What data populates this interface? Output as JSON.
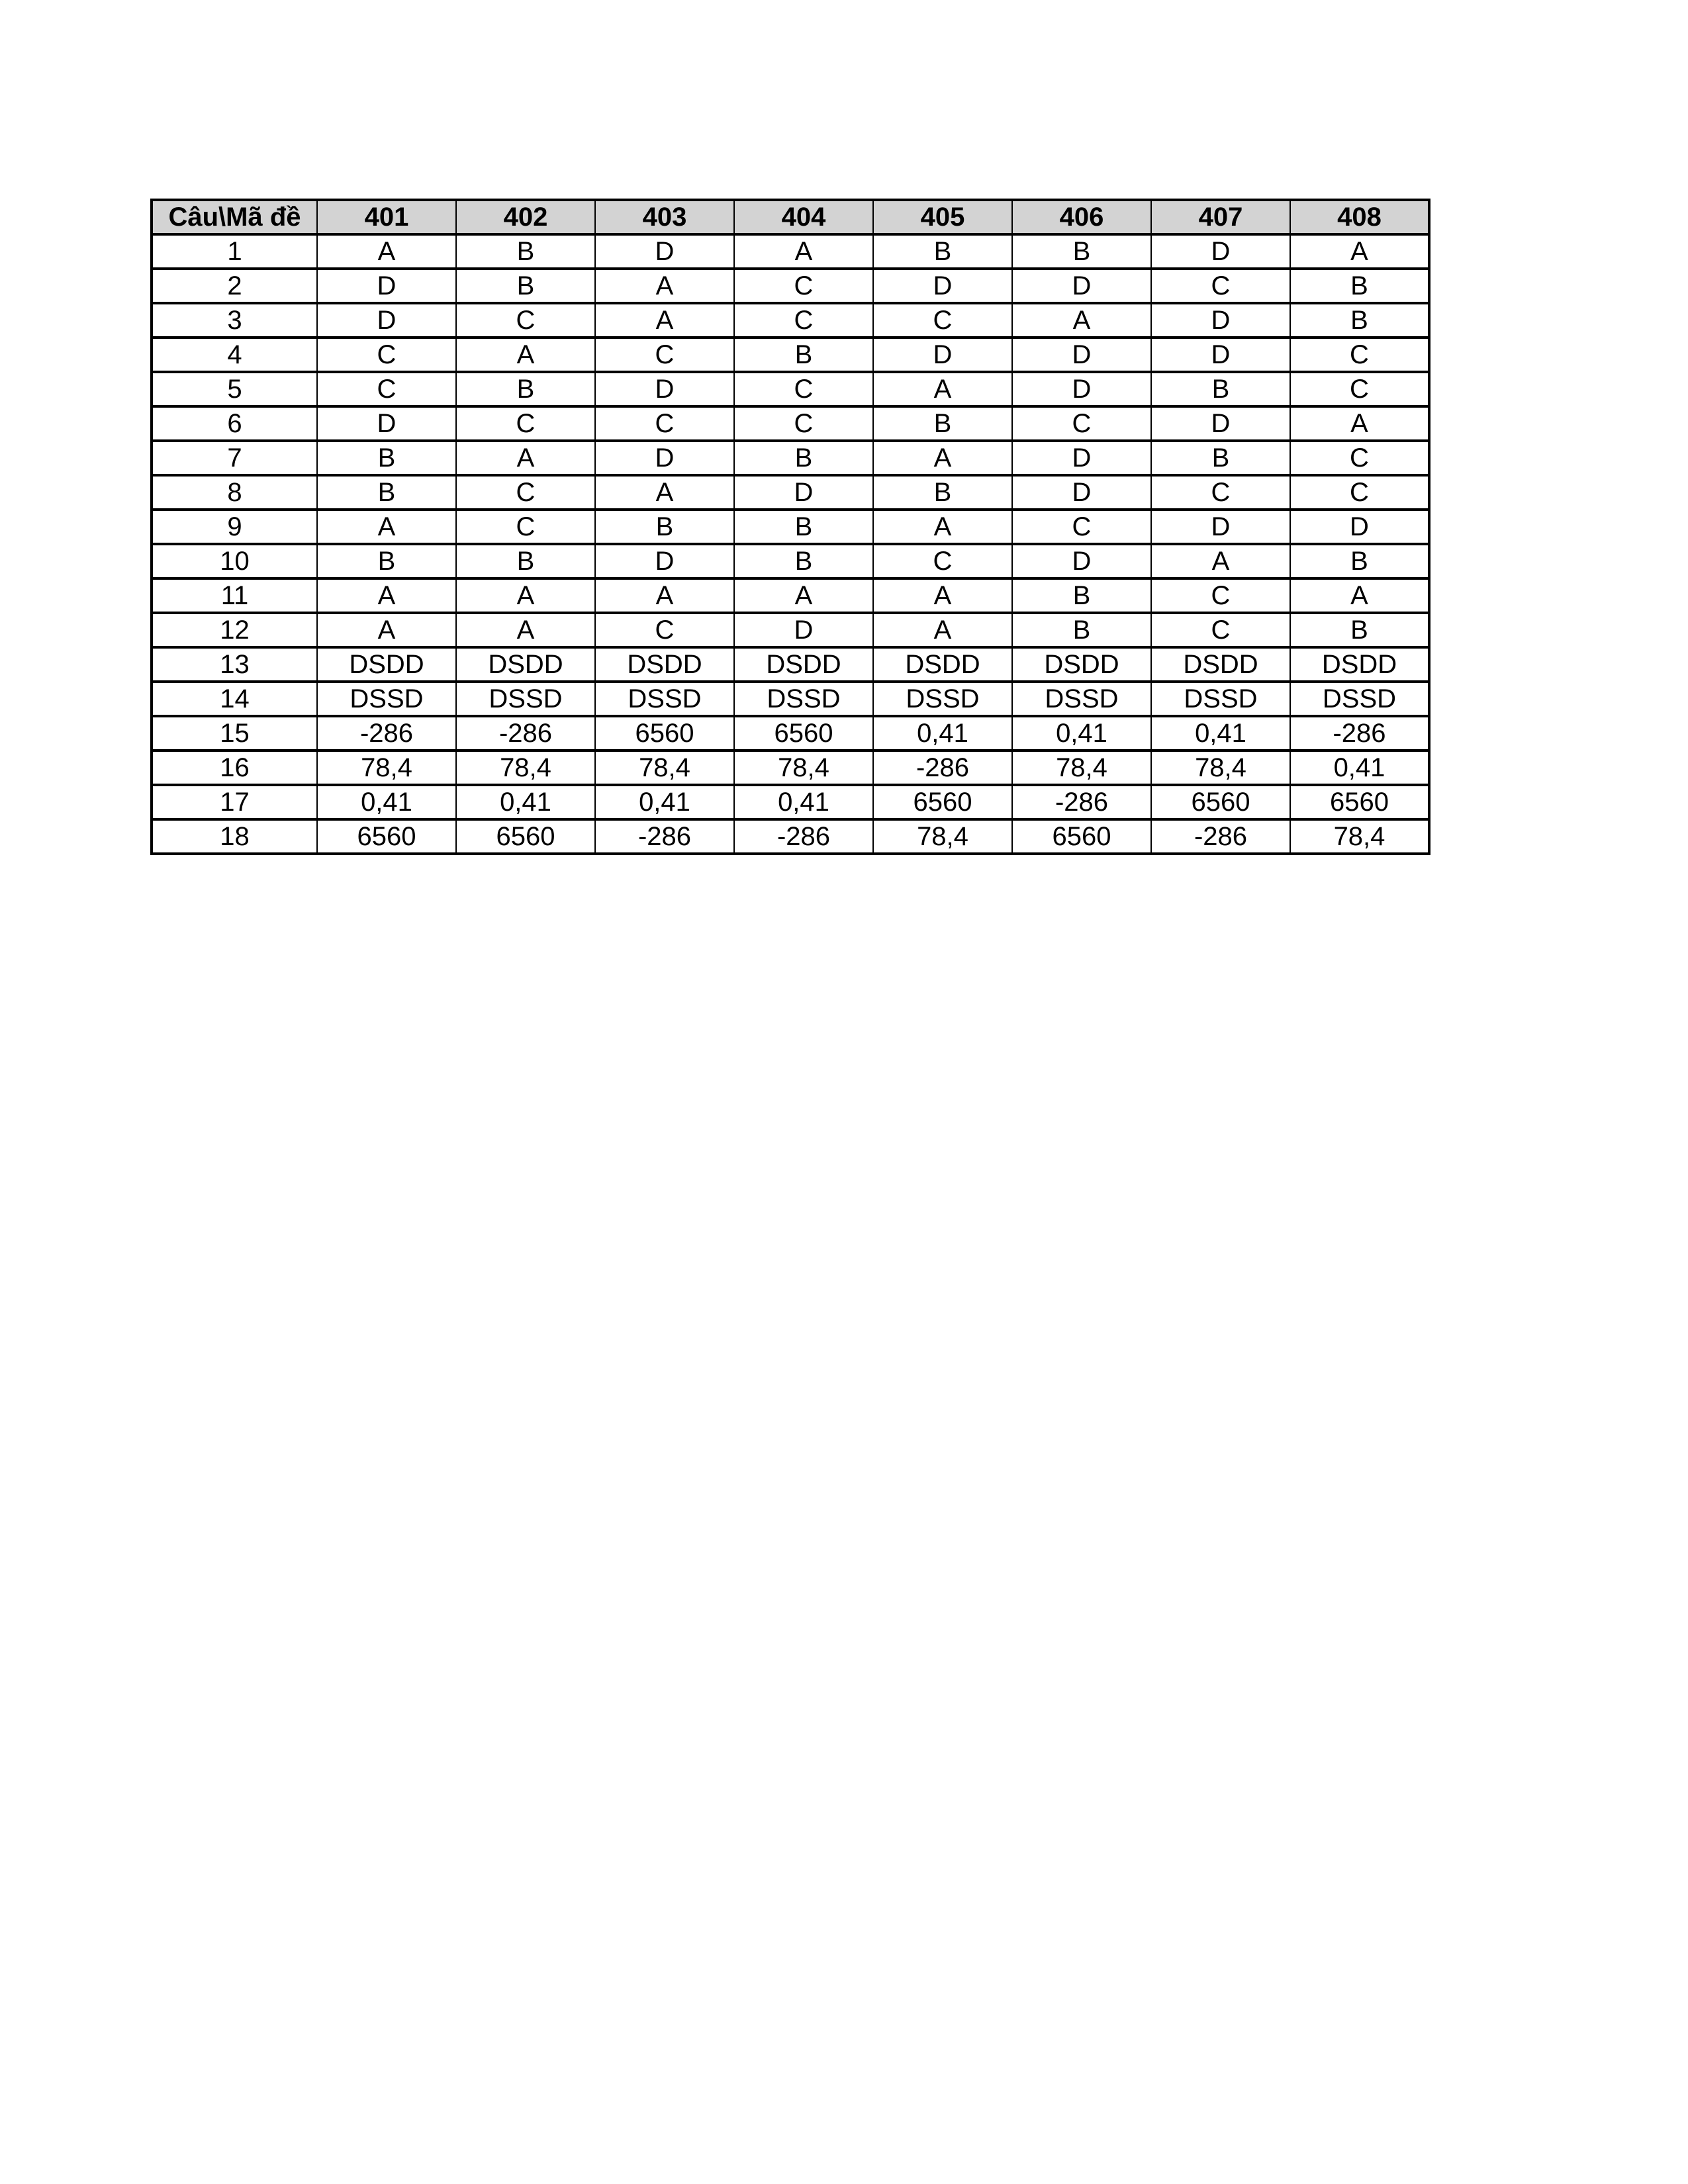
{
  "page": {
    "background": "#ffffff"
  },
  "table": {
    "corner_label": "Câu\\Mã đề",
    "exam_codes": [
      "401",
      "402",
      "403",
      "404",
      "405",
      "406",
      "407",
      "408"
    ],
    "header_bg": "#d3d3d3",
    "border_color": "#000000",
    "rows": [
      {
        "question": "1",
        "answers": [
          "A",
          "B",
          "D",
          "A",
          "B",
          "B",
          "D",
          "A"
        ]
      },
      {
        "question": "2",
        "answers": [
          "D",
          "B",
          "A",
          "C",
          "D",
          "D",
          "C",
          "B"
        ]
      },
      {
        "question": "3",
        "answers": [
          "D",
          "C",
          "A",
          "C",
          "C",
          "A",
          "D",
          "B"
        ]
      },
      {
        "question": "4",
        "answers": [
          "C",
          "A",
          "C",
          "B",
          "D",
          "D",
          "D",
          "C"
        ]
      },
      {
        "question": "5",
        "answers": [
          "C",
          "B",
          "D",
          "C",
          "A",
          "D",
          "B",
          "C"
        ]
      },
      {
        "question": "6",
        "answers": [
          "D",
          "C",
          "C",
          "C",
          "B",
          "C",
          "D",
          "A"
        ]
      },
      {
        "question": "7",
        "answers": [
          "B",
          "A",
          "D",
          "B",
          "A",
          "D",
          "B",
          "C"
        ]
      },
      {
        "question": "8",
        "answers": [
          "B",
          "C",
          "A",
          "D",
          "B",
          "D",
          "C",
          "C"
        ]
      },
      {
        "question": "9",
        "answers": [
          "A",
          "C",
          "B",
          "B",
          "A",
          "C",
          "D",
          "D"
        ]
      },
      {
        "question": "10",
        "answers": [
          "B",
          "B",
          "D",
          "B",
          "C",
          "D",
          "A",
          "B"
        ]
      },
      {
        "question": "11",
        "answers": [
          "A",
          "A",
          "A",
          "A",
          "A",
          "B",
          "C",
          "A"
        ]
      },
      {
        "question": "12",
        "answers": [
          "A",
          "A",
          "C",
          "D",
          "A",
          "B",
          "C",
          "B"
        ]
      },
      {
        "question": "13",
        "answers": [
          "DSDD",
          "DSDD",
          "DSDD",
          "DSDD",
          "DSDD",
          "DSDD",
          "DSDD",
          "DSDD"
        ]
      },
      {
        "question": "14",
        "answers": [
          "DSSD",
          "DSSD",
          "DSSD",
          "DSSD",
          "DSSD",
          "DSSD",
          "DSSD",
          "DSSD"
        ]
      },
      {
        "question": "15",
        "answers": [
          "-286",
          "-286",
          "6560",
          "6560",
          "0,41",
          "0,41",
          "0,41",
          "-286"
        ]
      },
      {
        "question": "16",
        "answers": [
          "78,4",
          "78,4",
          "78,4",
          "78,4",
          "-286",
          "78,4",
          "78,4",
          "0,41"
        ]
      },
      {
        "question": "17",
        "answers": [
          "0,41",
          "0,41",
          "0,41",
          "0,41",
          "6560",
          "-286",
          "6560",
          "6560"
        ]
      },
      {
        "question": "18",
        "answers": [
          "6560",
          "6560",
          "-286",
          "-286",
          "78,4",
          "6560",
          "-286",
          "78,4"
        ]
      }
    ]
  }
}
